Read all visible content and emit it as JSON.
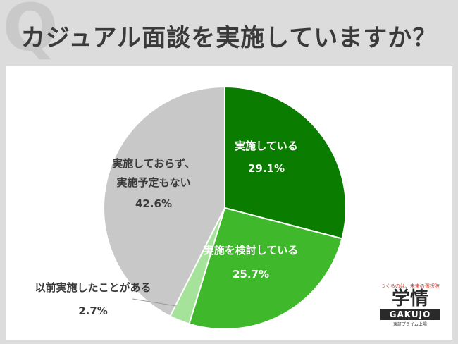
{
  "header": {
    "q_mark": "Q",
    "title": "カジュアル面談を実施していますか？"
  },
  "chart_data": {
    "type": "pie",
    "title": "カジュアル面談を実施していますか？",
    "slices": [
      {
        "label_lines": [
          "実施している"
        ],
        "value": 29.1,
        "value_text": "29.1%",
        "color": "#0a7d00",
        "text_color": "#ffffff"
      },
      {
        "label_lines": [
          "実施を検討している"
        ],
        "value": 25.7,
        "value_text": "25.7%",
        "color": "#3fb82c",
        "text_color": "#ffffff"
      },
      {
        "label_lines": [
          "以前実施したことがある"
        ],
        "value": 2.7,
        "value_text": "2.7%",
        "color": "#a6e39a",
        "text_color": "#3a3a3a"
      },
      {
        "label_lines": [
          "実施しておらず、",
          "実施予定もない"
        ],
        "value": 42.6,
        "value_text": "42.6%",
        "color": "#c8c8c8",
        "text_color": "#3a3a3a"
      }
    ],
    "start_angle_deg": 0,
    "direction": "clockwise"
  },
  "logo": {
    "tagline": "つくるのは、未来の選択肢",
    "name": "学情",
    "name_en": "GAKUJO",
    "sub": "東証プライム上場"
  }
}
